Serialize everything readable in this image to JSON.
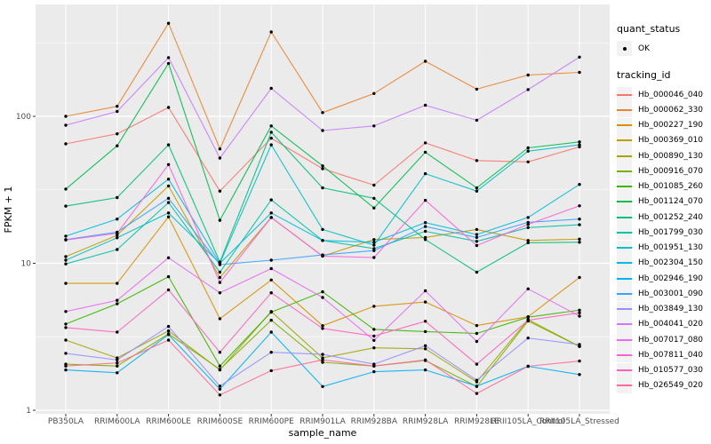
{
  "legend": {
    "quant_status_title": "quant_status",
    "quant_status_item": "OK",
    "tracking_id_title": "tracking_id"
  },
  "chart_data": {
    "type": "line",
    "title": "",
    "xlabel": "sample_name",
    "ylabel": "FPKM + 1",
    "y_scale": "log10",
    "ylim": [
      1,
      560
    ],
    "grid": "on",
    "legend_position": "right",
    "panel_color": "#EBEBEB",
    "point_marker": {
      "shape": "circle",
      "color": "#000000",
      "meaning": "quant_status OK"
    },
    "y_ticks": [
      {
        "value": 1,
        "label": "1"
      },
      {
        "value": 10,
        "label": "10"
      },
      {
        "value": 100,
        "label": "100"
      }
    ],
    "y_minor_gridlines": [
      3.162,
      31.62,
      316.2
    ],
    "x_categories": [
      "PB350LA",
      "RRIM600LA",
      "RRIM600LE",
      "RRIM600SE",
      "RRIM600PE",
      "RRIM901LA",
      "RRIM928BA",
      "RRIM928LA",
      "RRIM928LE",
      "RRII105LA_Control",
      "RRII105LA_Stressed"
    ],
    "series": [
      {
        "name": "Hb_000046_040",
        "color": "#F8766D",
        "values": [
          65,
          76,
          115,
          31,
          71,
          44,
          34,
          66,
          50,
          49,
          62
        ]
      },
      {
        "name": "Hb_000062_330",
        "color": "#EA8331",
        "values": [
          100,
          117,
          430,
          60,
          375,
          106,
          143,
          237,
          153,
          191,
          199
        ]
      },
      {
        "name": "Hb_000227_190",
        "color": "#D89000",
        "values": [
          7.3,
          7.3,
          20.7,
          4.2,
          7.7,
          3.76,
          5.1,
          5.45,
          3.77,
          4.33,
          8.0
        ]
      },
      {
        "name": "Hb_000369_010",
        "color": "#C09B00",
        "values": [
          11.1,
          15.5,
          33.6,
          8.0,
          20.5,
          11.2,
          14.5,
          15.0,
          17.0,
          14.3,
          14.6
        ]
      },
      {
        "name": "Hb_000890_130",
        "color": "#A3A500",
        "values": [
          3.0,
          2.27,
          3.47,
          1.88,
          4.7,
          2.27,
          2.66,
          2.62,
          1.56,
          4.14,
          2.72
        ]
      },
      {
        "name": "Hb_000916_070",
        "color": "#7CAE00",
        "values": [
          2.06,
          2.0,
          3.31,
          1.9,
          4.1,
          2.12,
          2.0,
          2.18,
          1.45,
          4.05,
          2.72
        ]
      },
      {
        "name": "Hb_001085_260",
        "color": "#39B600",
        "values": [
          3.86,
          5.3,
          8.1,
          2.0,
          4.65,
          6.4,
          3.55,
          3.43,
          3.33,
          4.3,
          4.8
        ]
      },
      {
        "name": "Hb_001124_070",
        "color": "#00BB4E",
        "values": [
          32,
          63,
          229,
          19.6,
          86,
          46,
          23.8,
          57,
          32.6,
          61,
          67
        ]
      },
      {
        "name": "Hb_001252_240",
        "color": "#00BF7D",
        "values": [
          24.5,
          28,
          64,
          10.2,
          78,
          32.6,
          27.7,
          14.5,
          8.7,
          13.8,
          13.9
        ]
      },
      {
        "name": "Hb_001799_030",
        "color": "#00C1A3",
        "values": [
          9.9,
          12.4,
          25.9,
          8.7,
          27,
          14.3,
          12.6,
          16.5,
          14.1,
          17.5,
          18.3
        ]
      },
      {
        "name": "Hb_001951_130",
        "color": "#00BFC4",
        "values": [
          10.5,
          14.9,
          22,
          10.0,
          64,
          17,
          13.3,
          40.7,
          31,
          58,
          64
        ]
      },
      {
        "name": "Hb_002304_150",
        "color": "#00BAE0",
        "values": [
          15.3,
          20,
          37.4,
          10.0,
          22,
          14.3,
          13.9,
          18.9,
          15.7,
          20.5,
          34.4
        ]
      },
      {
        "name": "Hb_002946_190",
        "color": "#00B0F6",
        "values": [
          1.88,
          1.8,
          3.27,
          1.39,
          3.4,
          1.45,
          1.83,
          1.88,
          1.46,
          1.99,
          1.75
        ]
      },
      {
        "name": "Hb_003001_090",
        "color": "#35A2FF",
        "values": [
          14.5,
          16.3,
          27.7,
          9.8,
          10.5,
          11.4,
          12.2,
          17.8,
          15.0,
          19.0,
          20.0
        ]
      },
      {
        "name": "Hb_003849_130",
        "color": "#9590FF",
        "values": [
          2.44,
          2.2,
          3.72,
          1.46,
          2.48,
          2.4,
          2.06,
          2.75,
          1.6,
          3.1,
          2.8
        ]
      },
      {
        "name": "Hb_004041_020",
        "color": "#C77CFF",
        "values": [
          87,
          108,
          251,
          52,
          155,
          80,
          86,
          119,
          94,
          152,
          253
        ]
      },
      {
        "name": "Hb_007017_080",
        "color": "#E76BF3",
        "values": [
          4.7,
          5.6,
          10.9,
          6.3,
          9.2,
          5.85,
          2.99,
          6.5,
          2.94,
          6.7,
          4.37
        ]
      },
      {
        "name": "Hb_007811_040",
        "color": "#FA62DB",
        "values": [
          14.4,
          16.0,
          47,
          7.4,
          20.5,
          11.2,
          10.95,
          26.8,
          13.2,
          18.4,
          24.6
        ]
      },
      {
        "name": "Hb_010577_030",
        "color": "#FF62BC",
        "values": [
          3.65,
          3.4,
          6.6,
          2.48,
          6.3,
          3.6,
          3.2,
          4.03,
          2.06,
          4.1,
          4.6
        ]
      },
      {
        "name": "Hb_026549_020",
        "color": "#FF6A98",
        "values": [
          2.0,
          2.1,
          3.0,
          1.27,
          1.86,
          2.2,
          2.0,
          2.2,
          1.3,
          1.99,
          2.16
        ]
      }
    ]
  }
}
